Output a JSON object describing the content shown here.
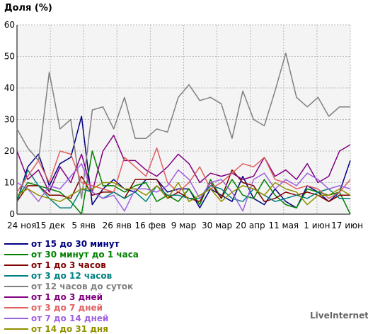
{
  "chart_data": {
    "type": "line",
    "ylabel": "Доля (%)",
    "ylim": [
      0,
      60
    ],
    "yticks": [
      0,
      10,
      20,
      30,
      40,
      50,
      60
    ],
    "grid": true,
    "x_labels": [
      "24 ноя",
      "15 дек",
      "5 янв",
      "26 янв",
      "16 фев",
      "9 мар",
      "30 мар",
      "20 апр",
      "11 мая",
      "1 июн",
      "17 июн"
    ],
    "series": [
      {
        "name": "от 15 до 30 минут",
        "color": "#000080",
        "values": [
          4,
          15,
          19,
          9,
          16,
          18,
          31,
          3,
          8,
          11,
          8,
          7,
          11,
          11,
          7,
          8,
          8,
          2,
          8,
          6,
          4,
          12,
          5,
          3,
          8,
          4,
          2,
          9,
          7,
          4,
          7,
          17
        ]
      },
      {
        "name": "от 30 минут до 1 часа",
        "color": "#008000",
        "values": [
          5,
          10,
          9,
          8,
          7,
          4,
          0,
          20,
          9,
          9,
          7,
          9,
          10,
          4,
          6,
          4,
          8,
          3,
          11,
          5,
          11,
          6,
          5,
          11,
          6,
          3,
          2,
          8,
          7,
          6,
          7,
          0
        ]
      },
      {
        "name": "от 1 до 3 часов",
        "color": "#800000",
        "values": [
          4,
          9,
          9,
          6,
          6,
          5,
          12,
          6,
          7,
          7,
          5,
          11,
          11,
          11,
          5,
          7,
          5,
          4,
          10,
          5,
          14,
          10,
          9,
          4,
          5,
          7,
          6,
          7,
          6,
          4,
          6,
          6
        ]
      },
      {
        "name": "от 3 до 12 часов",
        "color": "#008080",
        "values": [
          4,
          14,
          9,
          5,
          2,
          2,
          8,
          7,
          5,
          7,
          5,
          7,
          4,
          9,
          6,
          6,
          5,
          5,
          9,
          8,
          5,
          4,
          8,
          6,
          4,
          5,
          6,
          5,
          7,
          8,
          5,
          5
        ]
      },
      {
        "name": "от 12 часов до суток",
        "color": "#808080",
        "values": [
          27,
          21,
          17,
          45,
          27,
          30,
          5,
          33,
          34,
          27,
          37,
          24,
          24,
          27,
          26,
          37,
          41,
          36,
          37,
          35,
          24,
          39,
          30,
          28,
          39,
          51,
          37,
          34,
          37,
          31,
          34,
          34
        ]
      },
      {
        "name": "от 1 до 3 дней",
        "color": "#800080",
        "values": [
          20,
          11,
          14,
          7,
          15,
          10,
          19,
          7,
          20,
          25,
          17,
          17,
          14,
          12,
          15,
          19,
          16,
          10,
          13,
          12,
          13,
          11,
          12,
          18,
          12,
          14,
          11,
          16,
          10,
          12,
          20,
          22
        ]
      },
      {
        "name": "от 3 до 7 дней",
        "color": "#e06060",
        "values": [
          7,
          12,
          17,
          10,
          20,
          19,
          10,
          9,
          8,
          7,
          18,
          15,
          12,
          21,
          10,
          7,
          10,
          15,
          8,
          10,
          13,
          16,
          15,
          18,
          11,
          10,
          8,
          9,
          8,
          5,
          7,
          11
        ]
      },
      {
        "name": "от 7 до 14 дней",
        "color": "#a060e0",
        "values": [
          10,
          8,
          4,
          9,
          8,
          12,
          16,
          7,
          5,
          6,
          1,
          8,
          8,
          7,
          9,
          14,
          11,
          5,
          10,
          11,
          7,
          1,
          11,
          13,
          8,
          11,
          9,
          13,
          11,
          8,
          9,
          8
        ]
      },
      {
        "name": "от 14 до 31 дня",
        "color": "#909000",
        "values": [
          6,
          8,
          6,
          5,
          4,
          6,
          8,
          8,
          10,
          10,
          8,
          8,
          6,
          9,
          5,
          10,
          4,
          6,
          8,
          4,
          7,
          9,
          8,
          6,
          10,
          8,
          7,
          3,
          6,
          6,
          8,
          6
        ]
      }
    ]
  },
  "brand": "LiveInternet"
}
